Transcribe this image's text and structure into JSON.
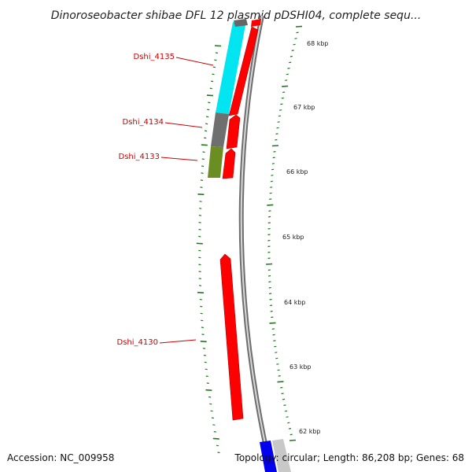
{
  "title": "Dinoroseobacter shibae DFL 12 plasmid pDSHI04, complete sequ...",
  "accession_label": "Accession: NC_009958",
  "topology_label": "Topology: circular; Length: 86,208 bp; Genes: 68",
  "colors": {
    "forward_gene": "#ff0000",
    "cyan_track": "#00e5f0",
    "gray_track": "#707070",
    "olive_track": "#6b8e23",
    "blue_track": "#0000ee",
    "light_gray_track": "#c8c8c8",
    "backbone": "#7a7a7a",
    "tick": "#1f7a1f",
    "label": "#cc0000"
  },
  "gene_labels": [
    {
      "name": "Dshi_4135"
    },
    {
      "name": "Dshi_4134"
    },
    {
      "name": "Dshi_4133"
    },
    {
      "name": "Dshi_4130"
    }
  ],
  "kbp_labels": [
    {
      "text": "68 kbp"
    },
    {
      "text": "67 kbp"
    },
    {
      "text": "66 kbp"
    },
    {
      "text": "65 kbp"
    },
    {
      "text": "64 kbp"
    },
    {
      "text": "63 kbp"
    },
    {
      "text": "62 kbp"
    }
  ]
}
